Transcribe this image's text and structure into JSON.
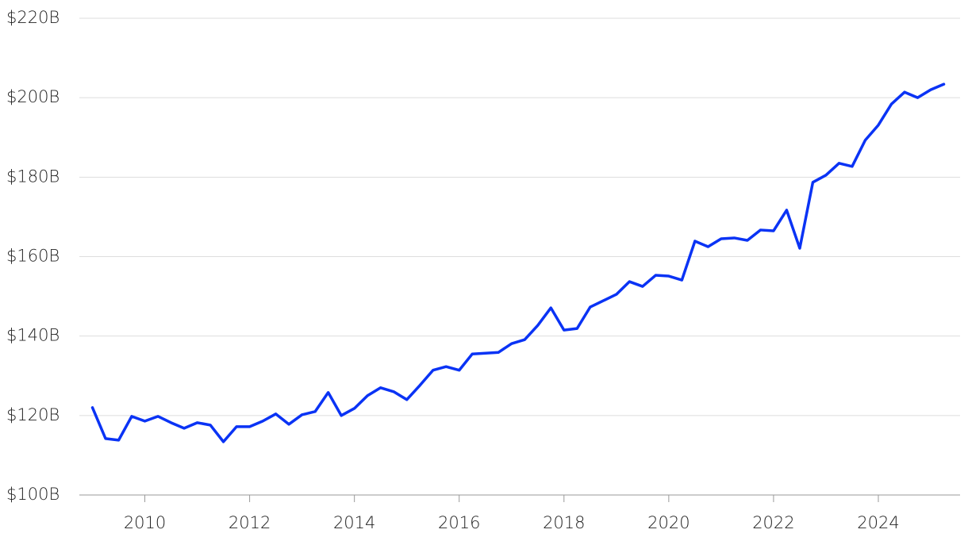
{
  "chart_data": {
    "type": "line",
    "x": [
      2009,
      2009.25,
      2009.5,
      2009.75,
      2010,
      2010.25,
      2010.5,
      2010.75,
      2011,
      2011.25,
      2011.5,
      2011.75,
      2012,
      2012.25,
      2012.5,
      2012.75,
      2013,
      2013.25,
      2013.5,
      2013.75,
      2014,
      2014.25,
      2014.5,
      2014.75,
      2015,
      2015.25,
      2015.5,
      2015.75,
      2016,
      2016.25,
      2016.5,
      2016.75,
      2017,
      2017.25,
      2017.5,
      2017.75,
      2018,
      2018.25,
      2018.5,
      2018.75,
      2019,
      2019.25,
      2019.5,
      2019.75,
      2020,
      2020.25,
      2020.5,
      2020.75,
      2021,
      2021.25,
      2021.5,
      2021.75,
      2022,
      2022.25,
      2022.5,
      2022.75,
      2023,
      2023.25,
      2023.5,
      2023.75,
      2024,
      2024.25,
      2024.5,
      2024.75,
      2025,
      2025.25
    ],
    "values": [
      122,
      114.2,
      113.8,
      119.8,
      118.6,
      119.8,
      118.2,
      116.8,
      118.2,
      117.6,
      113.4,
      117.2,
      117.2,
      118.6,
      120.4,
      117.8,
      120.2,
      121,
      125.8,
      120,
      121.8,
      125,
      127,
      126,
      124,
      127.6,
      131.4,
      132.3,
      131.4,
      135.5,
      135.7,
      135.9,
      138.1,
      139.1,
      142.7,
      147.1,
      141.5,
      141.9,
      147.3,
      148.9,
      150.5,
      153.7,
      152.5,
      155.3,
      155.1,
      154.1,
      163.9,
      162.5,
      164.5,
      164.7,
      164.1,
      166.7,
      166.5,
      171.7,
      162.1,
      178.7,
      180.5,
      183.5,
      182.7,
      189.3,
      193.1,
      198.4,
      201.4,
      200,
      202,
      203.4
    ],
    "color": "#0a33f5",
    "xlim": [
      2008.75,
      2025.56
    ],
    "xticks": [
      2010,
      2012,
      2014,
      2016,
      2018,
      2020,
      2022,
      2024
    ],
    "ylim": [
      100,
      220
    ],
    "yticks": [
      {
        "value": 100,
        "label": "$100B"
      },
      {
        "value": 120,
        "label": "$120B"
      },
      {
        "value": 140,
        "label": "$140B"
      },
      {
        "value": 160,
        "label": "$160B"
      },
      {
        "value": 180,
        "label": "$180B"
      },
      {
        "value": 200,
        "label": "$200B"
      },
      {
        "value": 220,
        "label": "$220B"
      }
    ],
    "grid": true
  }
}
